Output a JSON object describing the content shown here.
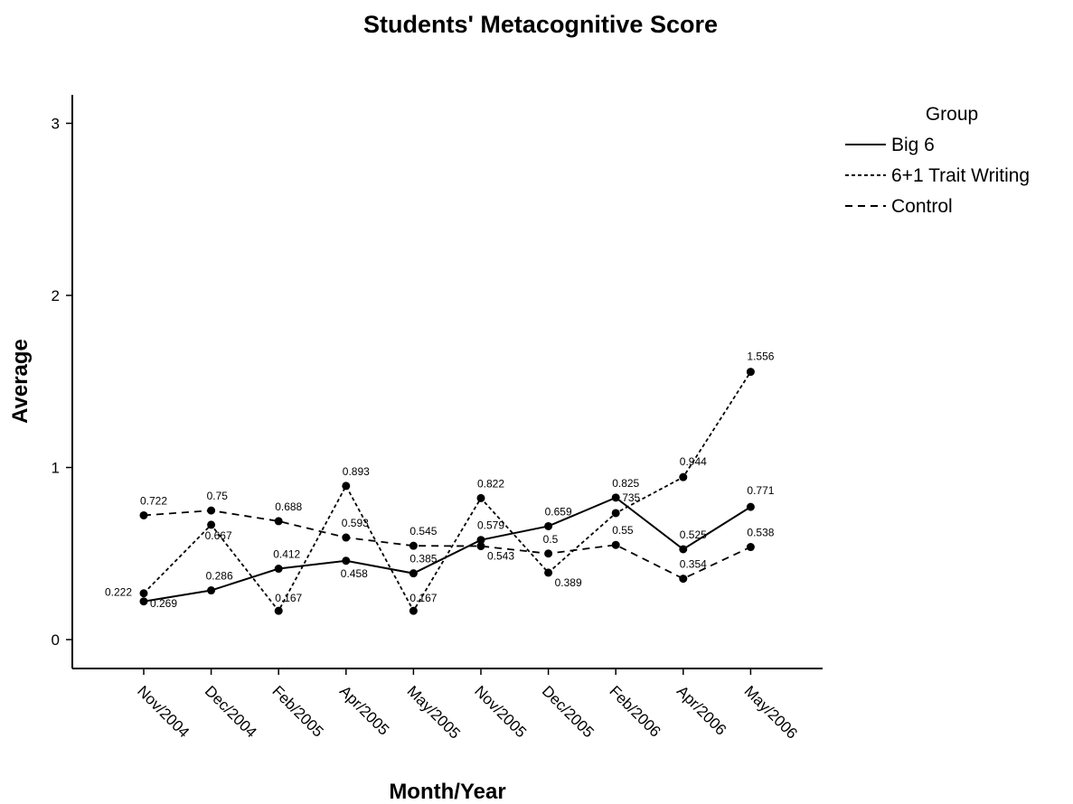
{
  "chart_data": {
    "type": "line",
    "title": "Students' Metacognitive Score",
    "xlabel": "Month/Year",
    "ylabel": "Average",
    "categories": [
      "Nov/2004",
      "Dec/2004",
      "Feb/2005",
      "Apr/2005",
      "May/2005",
      "Nov/2005",
      "Dec/2005",
      "Feb/2006",
      "Apr/2006",
      "May/2006"
    ],
    "yticks": [
      "0",
      "1",
      "2",
      "3"
    ],
    "ylim": [
      0,
      3
    ],
    "grid": false,
    "legend": {
      "title": "Group",
      "placement": "right"
    },
    "series": [
      {
        "name": "Big 6",
        "style": "solid",
        "values": [
          0.222,
          0.286,
          0.412,
          0.458,
          0.385,
          0.579,
          0.659,
          0.825,
          0.525,
          0.771
        ],
        "labels": [
          "0.222",
          "0.286",
          "0.412",
          "0.458",
          "0.385",
          "0.579",
          "0.659",
          "0.825",
          "0.525",
          "0.771"
        ]
      },
      {
        "name": "6+1 Trait Writing",
        "style": "dotted",
        "values": [
          0.269,
          0.667,
          0.167,
          0.893,
          0.167,
          0.822,
          0.389,
          0.735,
          0.944,
          1.556
        ],
        "labels": [
          "0.269",
          "0.667",
          "0.167",
          "0.893",
          "0.167",
          "0.822",
          "0.389",
          "0.735",
          "0.944",
          "1.556"
        ]
      },
      {
        "name": "Control",
        "style": "dashed",
        "values": [
          0.722,
          0.75,
          0.688,
          0.593,
          0.545,
          0.543,
          0.5,
          0.55,
          0.354,
          0.538
        ],
        "labels": [
          "0.722",
          "0.75",
          "0.688",
          "0.593",
          "0.545",
          "0.543",
          "0.5",
          "0.55",
          "0.354",
          "0.538"
        ]
      }
    ]
  }
}
